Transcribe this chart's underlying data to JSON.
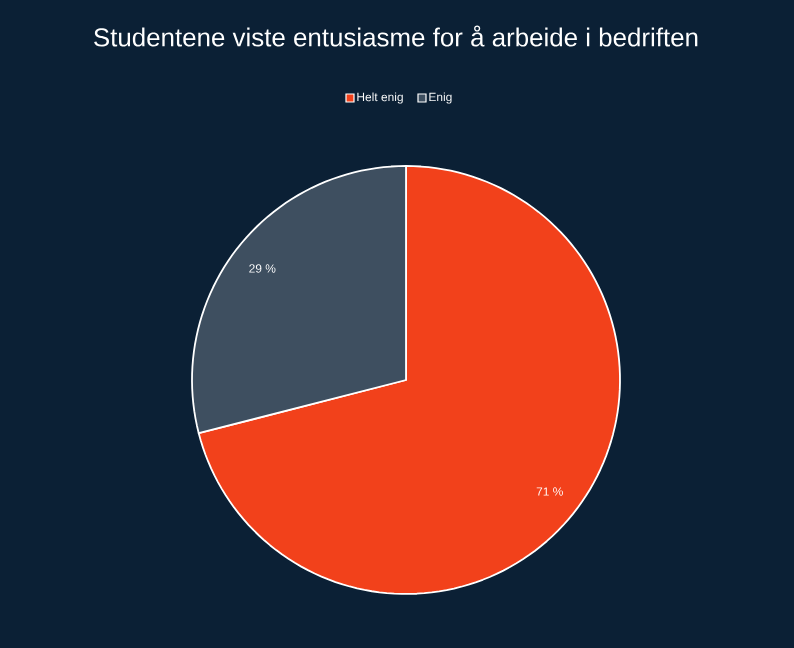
{
  "chart_data": {
    "type": "pie",
    "title": "Studentene viste entusiasme for å arbeide i bedriften",
    "categories": [
      "Helt enig",
      "Enig"
    ],
    "values": [
      71,
      29
    ],
    "colors": [
      "#f2411b",
      "#3e4f60"
    ],
    "value_labels": [
      "71 %",
      "29 %"
    ],
    "legend": "top"
  }
}
